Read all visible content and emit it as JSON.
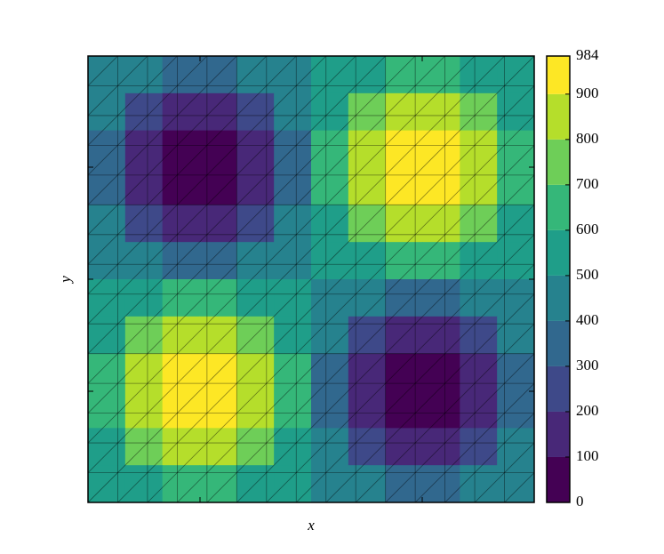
{
  "chart_data": {
    "type": "contourf",
    "x_label": "x",
    "y_label": "y",
    "levels": [
      0,
      100,
      200,
      300,
      400,
      500,
      600,
      700,
      800,
      900,
      984
    ],
    "colors": [
      "#440154",
      "#482878",
      "#3e4989",
      "#31688e",
      "#26828e",
      "#1f9e89",
      "#35b779",
      "#6ece58",
      "#b5de2b",
      "#fde725"
    ],
    "z": [
      [
        459,
        402,
        369,
        369,
        402,
        459,
        525,
        582,
        615,
        615,
        582,
        525
      ],
      [
        402,
        246,
        156,
        156,
        246,
        402,
        582,
        738,
        828,
        828,
        738,
        582
      ],
      [
        369,
        156,
        33,
        33,
        156,
        369,
        615,
        828,
        951,
        951,
        828,
        615
      ],
      [
        369,
        156,
        33,
        33,
        156,
        369,
        615,
        828,
        951,
        951,
        828,
        615
      ],
      [
        402,
        246,
        156,
        156,
        246,
        402,
        582,
        738,
        828,
        828,
        738,
        582
      ],
      [
        459,
        402,
        369,
        369,
        402,
        459,
        525,
        582,
        615,
        615,
        582,
        525
      ],
      [
        525,
        582,
        615,
        615,
        582,
        525,
        459,
        402,
        369,
        369,
        402,
        459
      ],
      [
        582,
        738,
        828,
        828,
        738,
        582,
        402,
        246,
        156,
        156,
        246,
        402
      ],
      [
        615,
        828,
        951,
        951,
        828,
        615,
        369,
        156,
        33,
        33,
        156,
        369
      ],
      [
        615,
        828,
        951,
        951,
        828,
        615,
        369,
        156,
        33,
        33,
        156,
        369
      ],
      [
        582,
        738,
        828,
        828,
        738,
        582,
        402,
        246,
        156,
        156,
        246,
        402
      ],
      [
        525,
        582,
        615,
        615,
        582,
        525,
        459,
        402,
        369,
        369,
        402,
        459
      ]
    ]
  }
}
